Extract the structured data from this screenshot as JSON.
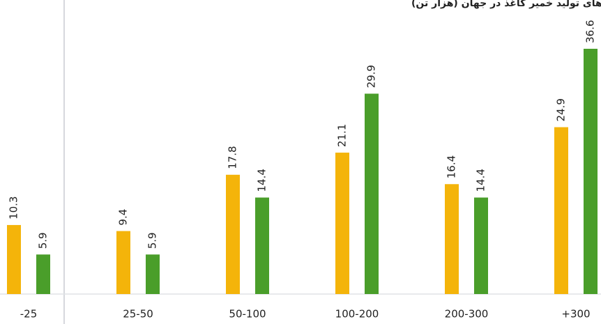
{
  "chart_data": {
    "type": "bar",
    "title": "نسبت کارخانه های تولید خمیر کاغذ در جهان (هزار تن)",
    "categories": [
      "-25",
      "25-50",
      "50-100",
      "100-200",
      "200-300",
      "+300"
    ],
    "series": [
      {
        "color": "#f4b40a",
        "values": [
          10.3,
          9.4,
          17.8,
          21.1,
          16.4,
          24.9
        ]
      },
      {
        "color": "#4a9e2a",
        "values": [
          5.9,
          5.9,
          14.4,
          29.9,
          14.4,
          36.6
        ]
      }
    ]
  }
}
